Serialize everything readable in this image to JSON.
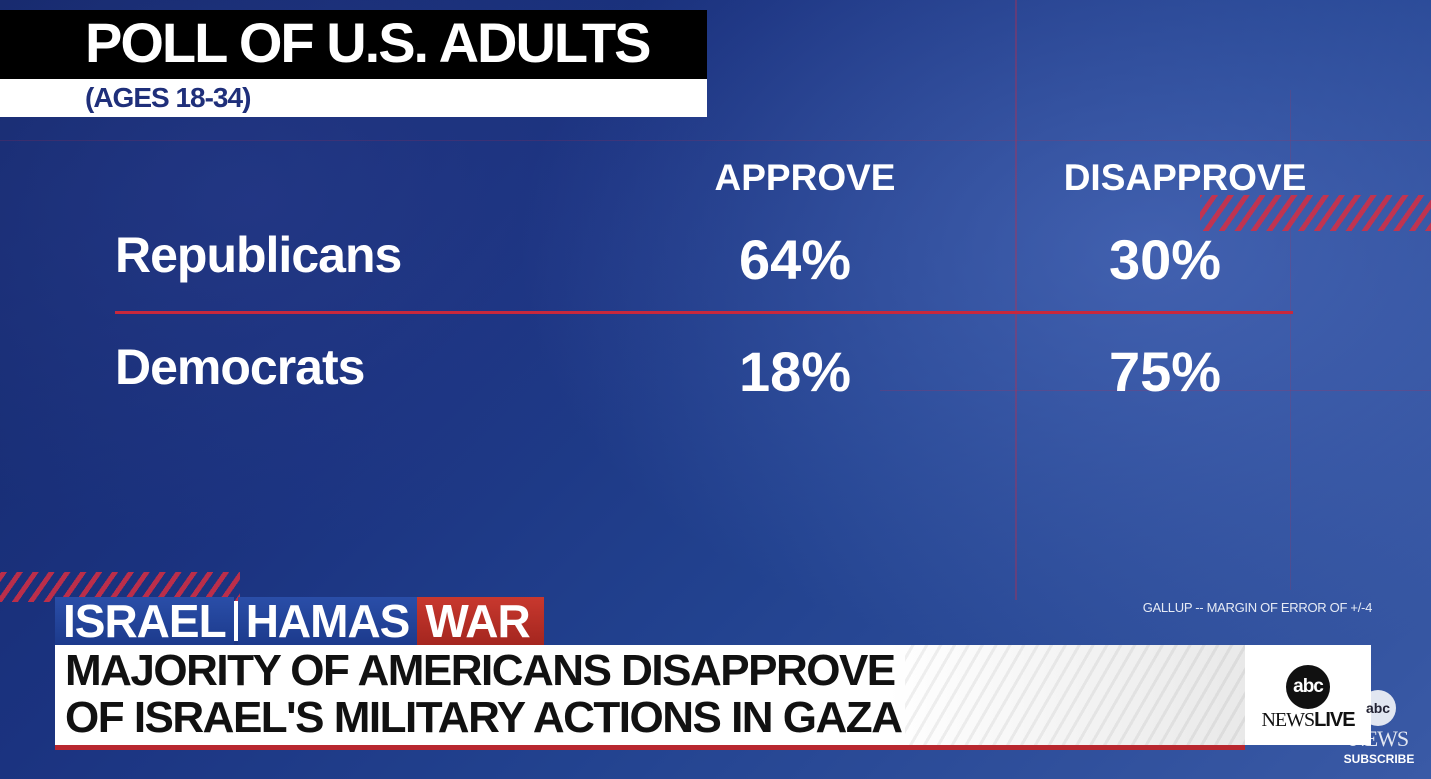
{
  "poll": {
    "title": "POLL OF U.S. ADULTS",
    "subtitle": "(AGES 18-34)",
    "columns": [
      "APPROVE",
      "DISAPPROVE"
    ],
    "rows": [
      {
        "label": "Republicans",
        "approve": "64%",
        "disapprove": "30%"
      },
      {
        "label": "Democrats",
        "approve": "18%",
        "disapprove": "75%"
      }
    ],
    "source": "GALLUP -- MARGIN OF ERROR OF +/-4"
  },
  "lower_third": {
    "tag_part1": "ISRAEL",
    "tag_part2": "HAMAS",
    "tag_part3": "WAR",
    "headline_line1": "MAJORITY OF AMERICANS DISAPPROVE",
    "headline_line2": "OF ISRAEL'S MILITARY ACTIONS IN GAZA"
  },
  "logo": {
    "mark": "abc",
    "wordmark_news": "NEWS",
    "wordmark_live": "LIVE"
  },
  "subscribe": {
    "mark": "abc",
    "news": "NEWS",
    "label": "SUBSCRIBE"
  },
  "colors": {
    "accent_red": "#c8283c",
    "title_navy": "#1f2f7a",
    "tag_blue": "#1c3a8c",
    "tag_red": "#a4261f"
  }
}
